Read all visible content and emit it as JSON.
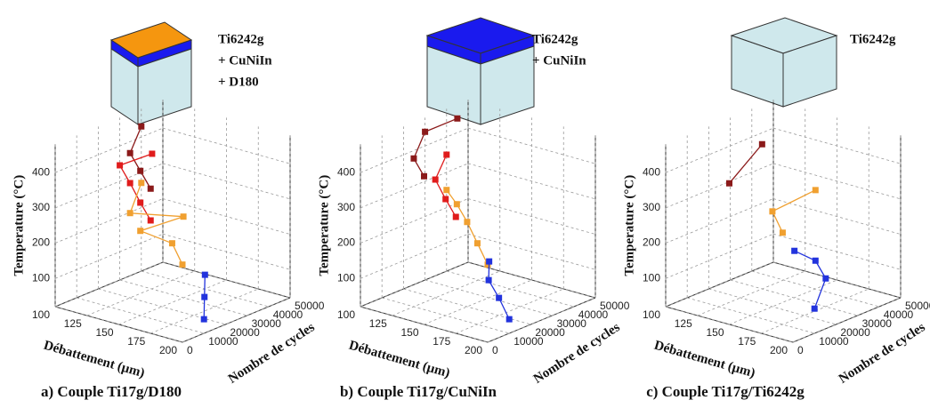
{
  "chart_data": [
    {
      "type": "scatter3d",
      "caption": "a) Couple Ti17g/D180",
      "cube_label": [
        "Ti6242g",
        "+ CuNiIn",
        "+ D180"
      ],
      "xlabel": "Débattement (μm)",
      "ylabel": "Nombre de cycles",
      "zlabel": "Temperature (°C)",
      "xlim": [
        100,
        200
      ],
      "xticks": [
        100,
        125,
        150,
        175,
        200
      ],
      "ylim": [
        0,
        50000
      ],
      "yticks": [
        0,
        10000,
        20000,
        30000,
        40000,
        50000
      ],
      "zlim": [
        20,
        480
      ],
      "zticks": [
        100,
        200,
        300,
        400
      ],
      "grid": true,
      "series": [
        {
          "color": "#8b1a1a",
          "x": [
            175,
            150,
            125,
            100
          ],
          "y": [
            0,
            10000,
            20000,
            40000
          ],
          "z": [
            430,
            430,
            430,
            430
          ]
        },
        {
          "color": "#e01c1c",
          "x": [
            175,
            150,
            125,
            100,
            100
          ],
          "y": [
            0,
            10000,
            20000,
            30000,
            45000
          ],
          "z": [
            340,
            340,
            345,
            345,
            340
          ]
        },
        {
          "color": "#f0a030",
          "x": [
            200,
            175,
            150,
            150,
            125,
            100
          ],
          "y": [
            0,
            10000,
            10000,
            30000,
            20000,
            40000
          ],
          "z": [
            240,
            250,
            260,
            250,
            260,
            270
          ]
        },
        {
          "color": "#2233dd",
          "x": [
            200,
            175,
            150
          ],
          "y": [
            10000,
            25000,
            40000
          ],
          "z": [
            60,
            60,
            60
          ]
        }
      ]
    },
    {
      "type": "scatter3d",
      "caption": "b) Couple Ti17g/CuNiIn",
      "cube_label": [
        "Ti6242g",
        "+ CuNiIn"
      ],
      "xlabel": "Débattement (μm)",
      "ylabel": "Nombre de cycles",
      "zlabel": "Temperature (°C)",
      "xlim": [
        100,
        200
      ],
      "xticks": [
        100,
        125,
        150,
        175,
        200
      ],
      "ylim": [
        0,
        50000
      ],
      "yticks": [
        0,
        10000,
        20000,
        30000,
        40000,
        50000
      ],
      "zlim": [
        20,
        480
      ],
      "zticks": [
        100,
        200,
        300,
        400
      ],
      "grid": true,
      "series": [
        {
          "color": "#8b1a1a",
          "x": [
            150,
            125,
            100,
            100
          ],
          "y": [
            0,
            10000,
            30000,
            45000
          ],
          "z": [
            440,
            440,
            440,
            440
          ]
        },
        {
          "color": "#e01c1c",
          "x": [
            175,
            150,
            125,
            100
          ],
          "y": [
            0,
            10000,
            20000,
            40000
          ],
          "z": [
            350,
            350,
            355,
            350
          ]
        },
        {
          "color": "#f0a030",
          "x": [
            200,
            175,
            150,
            125,
            100
          ],
          "y": [
            0,
            10000,
            20000,
            30000,
            40000
          ],
          "z": [
            240,
            250,
            260,
            260,
            250
          ]
        },
        {
          "color": "#2233dd",
          "x": [
            200,
            175,
            150,
            125
          ],
          "y": [
            10000,
            20000,
            30000,
            45000
          ],
          "z": [
            60,
            70,
            70,
            60
          ]
        }
      ]
    },
    {
      "type": "scatter3d",
      "caption": "c) Couple Ti17g/Ti6242g",
      "cube_label": [
        "Ti6242g"
      ],
      "xlabel": "Débattement (μm)",
      "ylabel": "Nombre de cycles",
      "zlabel": "Temperature (°C)",
      "xlim": [
        100,
        200
      ],
      "xticks": [
        100,
        125,
        150,
        175,
        200
      ],
      "ylim": [
        0,
        50000
      ],
      "yticks": [
        0,
        10000,
        20000,
        30000,
        40000,
        50000
      ],
      "zlim": [
        20,
        480
      ],
      "zticks": [
        100,
        200,
        300,
        400
      ],
      "grid": true,
      "series": [
        {
          "color": "#8b1a1a",
          "x": [
            150,
            125
          ],
          "y": [
            0,
            30000
          ],
          "z": [
            420,
            430
          ]
        },
        {
          "color": "#f0a030",
          "x": [
            175,
            150,
            150
          ],
          "y": [
            10000,
            20000,
            40000
          ],
          "z": [
            280,
            290,
            300
          ]
        },
        {
          "color": "#2233dd",
          "x": [
            200,
            175,
            150,
            125
          ],
          "y": [
            10000,
            30000,
            40000,
            45000
          ],
          "z": [
            90,
            100,
            100,
            90
          ]
        }
      ]
    }
  ]
}
